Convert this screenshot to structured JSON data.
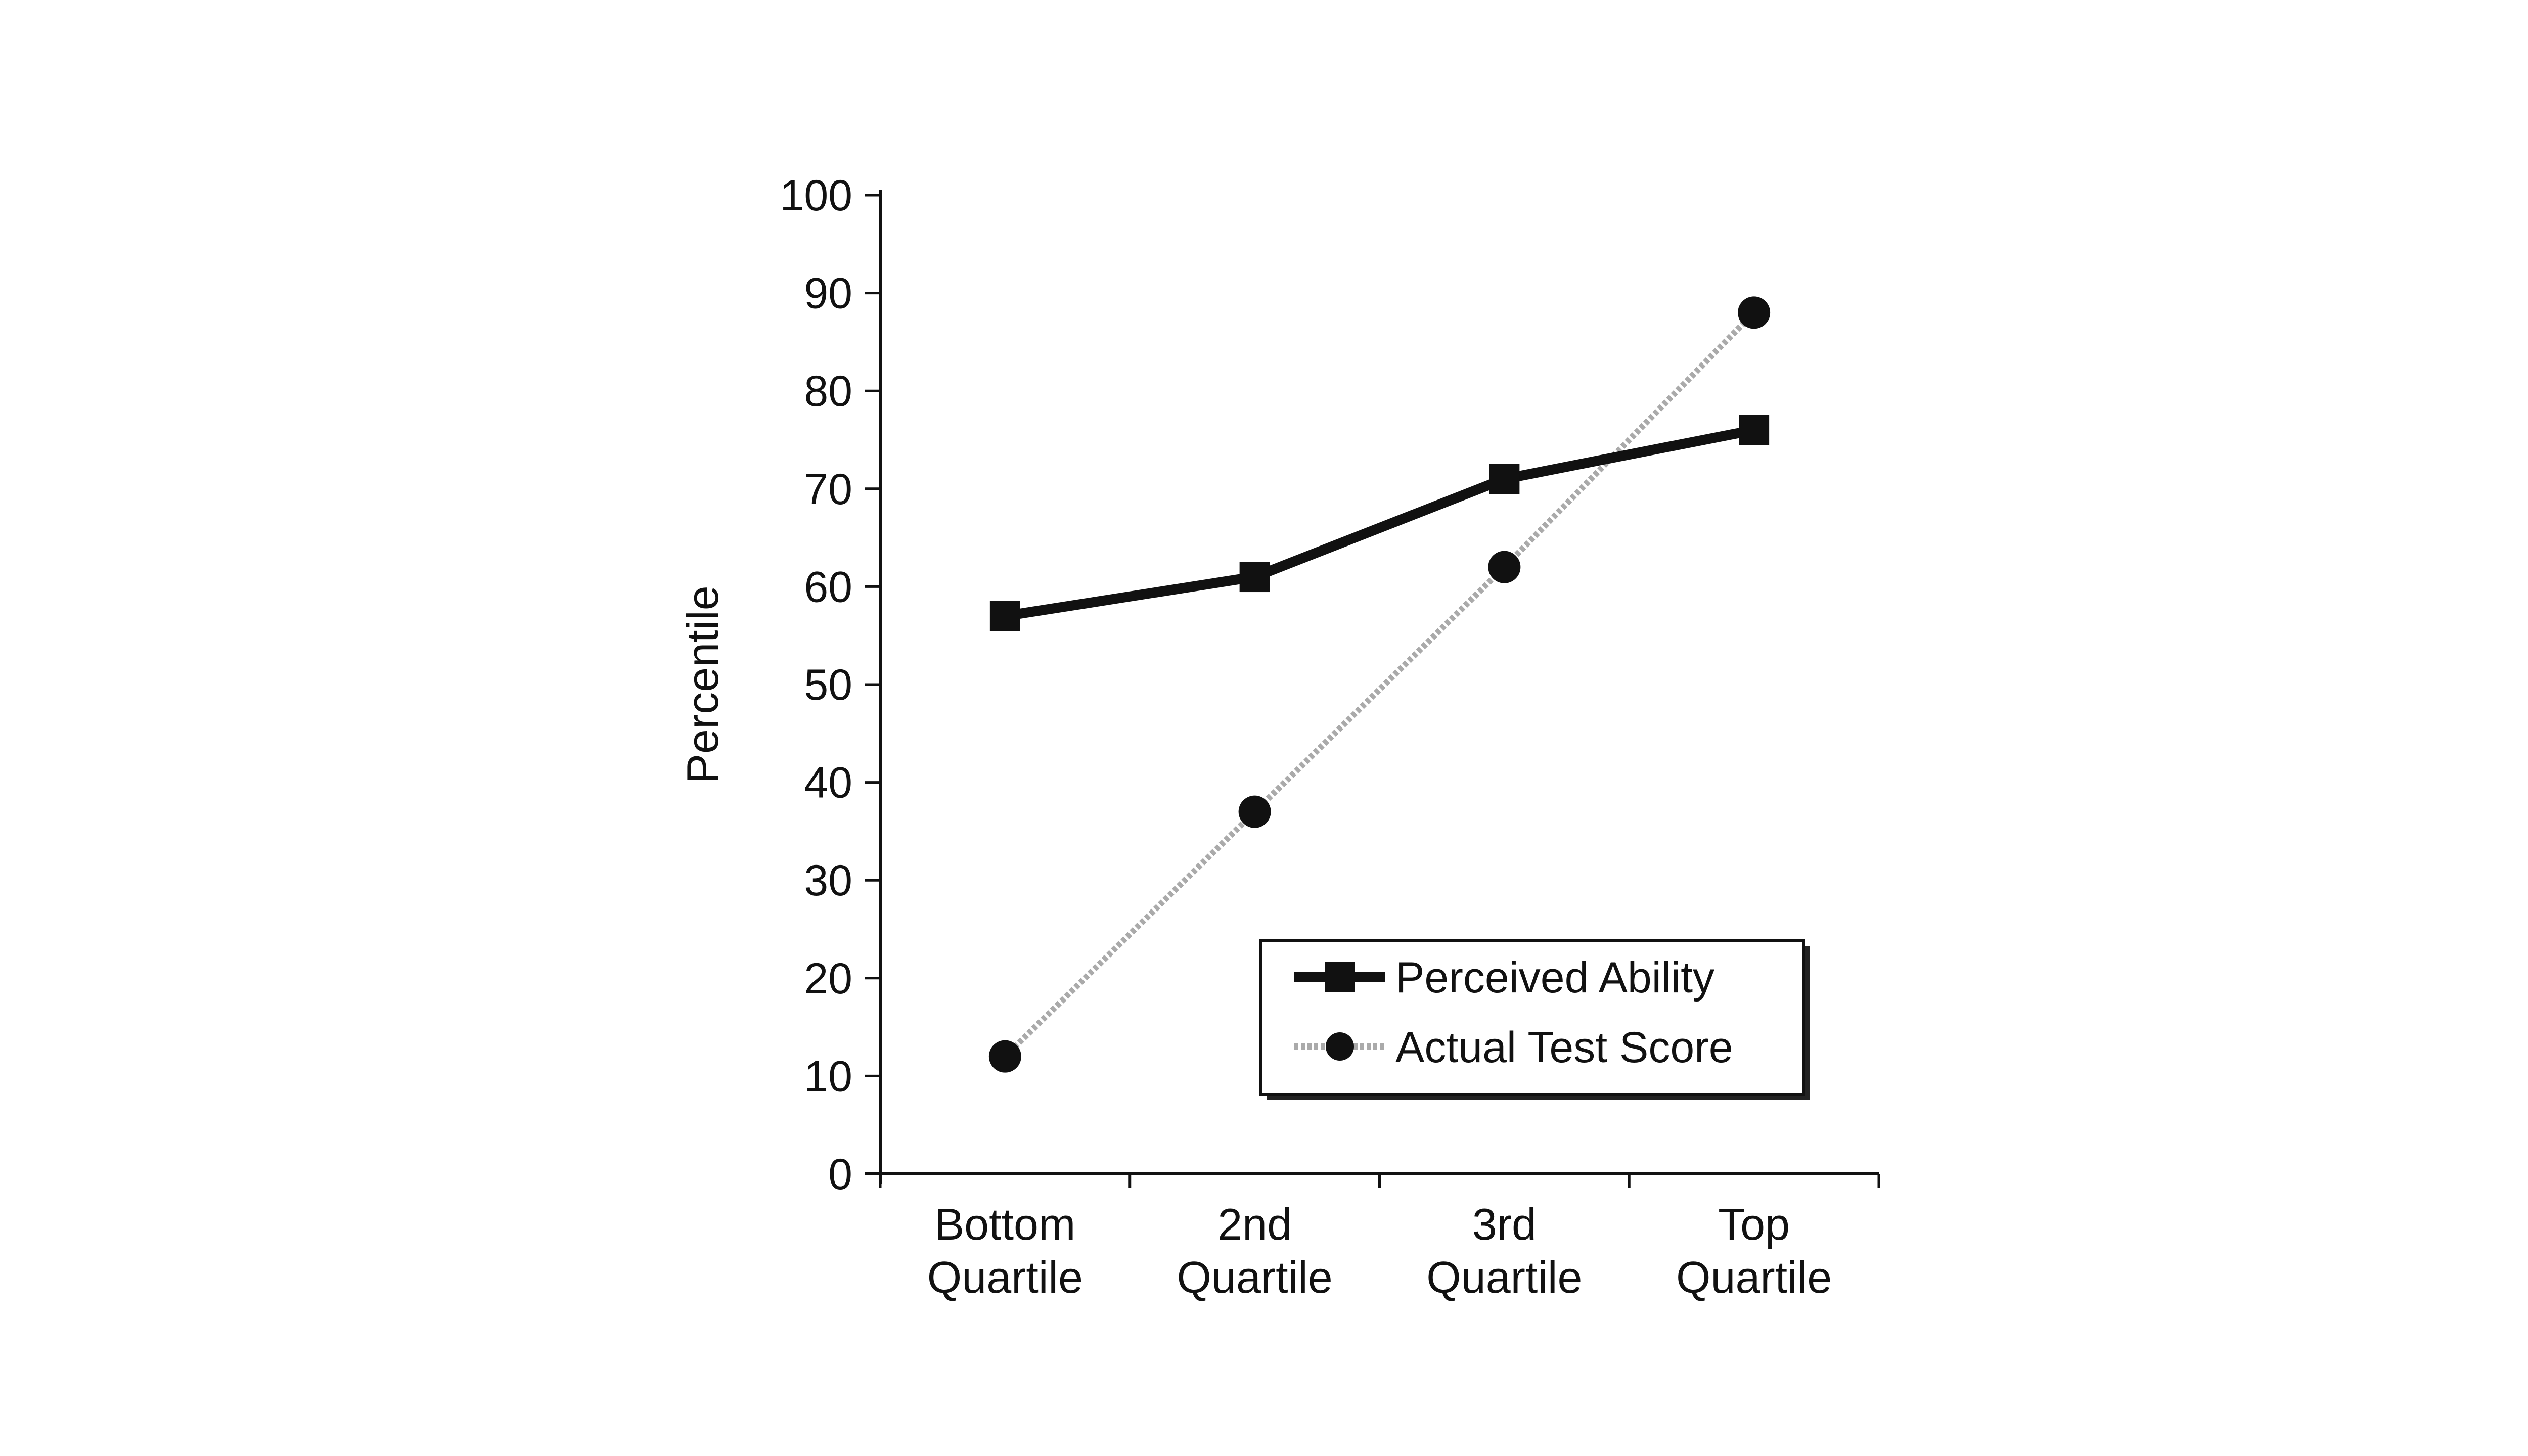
{
  "chart_data": {
    "type": "line",
    "title": "",
    "xlabel": "",
    "ylabel": "Percentile",
    "ylim": [
      0,
      100
    ],
    "yticks": [
      0,
      10,
      20,
      30,
      40,
      50,
      60,
      70,
      80,
      90,
      100
    ],
    "categories": [
      [
        "Bottom",
        "Quartile"
      ],
      [
        "2nd",
        "Quartile"
      ],
      [
        "3rd",
        "Quartile"
      ],
      [
        "Top",
        "Quartile"
      ]
    ],
    "grid": false,
    "legend_position": "bottom-right",
    "series": [
      {
        "name": "Perceived Ability",
        "values": [
          57,
          61,
          71,
          76
        ],
        "marker": "square",
        "line_style": "solid",
        "color": "#111111"
      },
      {
        "name": "Actual Test Score",
        "values": [
          12,
          37,
          62,
          88
        ],
        "marker": "circle",
        "line_style": "dotted-gray",
        "color": "#aaaaaa"
      }
    ]
  }
}
